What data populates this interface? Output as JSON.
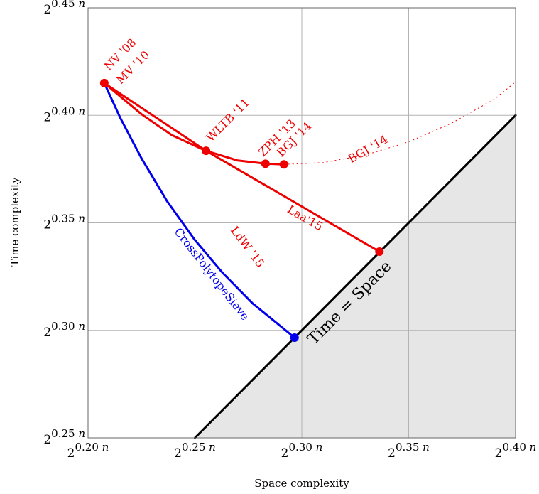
{
  "chart_data": {
    "type": "line",
    "xlabel": "Space complexity",
    "ylabel": "Time  complexity",
    "xlim": [
      0.2,
      0.4
    ],
    "ylim": [
      0.25,
      0.45
    ],
    "grid": true,
    "x_ticks": [
      {
        "value": 0.2,
        "base": "2",
        "exp": "0.20",
        "var": "n"
      },
      {
        "value": 0.25,
        "base": "2",
        "exp": "0.25",
        "var": "n"
      },
      {
        "value": 0.3,
        "base": "2",
        "exp": "0.30",
        "var": "n"
      },
      {
        "value": 0.35,
        "base": "2",
        "exp": "0.35",
        "var": "n"
      },
      {
        "value": 0.4,
        "base": "2",
        "exp": "0.40",
        "var": "n"
      }
    ],
    "y_ticks": [
      {
        "value": 0.25,
        "base": "2",
        "exp": "0.25",
        "var": "n"
      },
      {
        "value": 0.3,
        "base": "2",
        "exp": "0.30",
        "var": "n"
      },
      {
        "value": 0.35,
        "base": "2",
        "exp": "0.35",
        "var": "n"
      },
      {
        "value": 0.4,
        "base": "2",
        "exp": "0.40",
        "var": "n"
      },
      {
        "value": 0.45,
        "base": "2",
        "exp": "0.45",
        "var": "n"
      }
    ],
    "colors": {
      "red": "#ee0000",
      "blue": "#0000ee",
      "black": "#000000",
      "shade": "#e6e6e6",
      "grid": "#b3b3b3"
    },
    "region": {
      "label": "Time = Space",
      "from": [
        0.25,
        0.25
      ],
      "to": [
        0.4,
        0.4
      ]
    },
    "series": [
      {
        "color": "red",
        "style": "solid",
        "points": [
          [
            0.2076,
            0.415
          ],
          [
            0.225,
            0.4005
          ],
          [
            0.2392,
            0.3908
          ],
          [
            0.2552,
            0.3835
          ],
          [
            0.27,
            0.379
          ],
          [
            0.283,
            0.3775
          ],
          [
            0.2916,
            0.3772
          ]
        ]
      },
      {
        "color": "red",
        "style": "solid",
        "points": [
          [
            0.2076,
            0.415
          ],
          [
            0.2552,
            0.3835
          ]
        ]
      },
      {
        "color": "red",
        "style": "solid",
        "points": [
          [
            0.2552,
            0.3835
          ],
          [
            0.3363,
            0.3366
          ]
        ]
      },
      {
        "color": "red",
        "style": "dotted",
        "points": [
          [
            0.2916,
            0.3772
          ],
          [
            0.31,
            0.378
          ],
          [
            0.33,
            0.3816
          ],
          [
            0.35,
            0.3877
          ],
          [
            0.37,
            0.3963
          ],
          [
            0.39,
            0.4075
          ],
          [
            0.3994,
            0.4151
          ]
        ]
      },
      {
        "color": "blue",
        "style": "solid",
        "points": [
          [
            0.2076,
            0.415
          ],
          [
            0.215,
            0.399
          ],
          [
            0.225,
            0.38
          ],
          [
            0.237,
            0.36
          ],
          [
            0.25,
            0.342
          ],
          [
            0.263,
            0.3267
          ],
          [
            0.277,
            0.3125
          ],
          [
            0.2966,
            0.2966
          ]
        ]
      },
      {
        "color": "black",
        "style": "solid",
        "points": [
          [
            0.25,
            0.25
          ],
          [
            0.4,
            0.4
          ]
        ]
      }
    ],
    "markers": [
      {
        "x": 0.2076,
        "y": 0.415,
        "color": "red"
      },
      {
        "x": 0.2552,
        "y": 0.3835,
        "color": "red"
      },
      {
        "x": 0.283,
        "y": 0.3775,
        "color": "red"
      },
      {
        "x": 0.2916,
        "y": 0.3772,
        "color": "red"
      },
      {
        "x": 0.3363,
        "y": 0.3366,
        "color": "red"
      },
      {
        "x": 0.2966,
        "y": 0.2966,
        "color": "blue"
      }
    ],
    "annotations": [
      {
        "text": "NV '08",
        "x": 0.2152,
        "y": 0.4281,
        "angle": -45,
        "color": "red",
        "size": 16
      },
      {
        "text": "MV '10",
        "x": 0.2212,
        "y": 0.4221,
        "angle": -45,
        "color": "red",
        "size": 16
      },
      {
        "text": "WLTB '11",
        "x": 0.2656,
        "y": 0.3976,
        "angle": -45,
        "color": "red",
        "size": 16
      },
      {
        "text": "ZPH '13",
        "x": 0.2886,
        "y": 0.3893,
        "angle": -45,
        "color": "red",
        "size": 16
      },
      {
        "text": "BGJ '14",
        "x": 0.2966,
        "y": 0.3886,
        "angle": -45,
        "color": "red",
        "size": 16
      },
      {
        "text": "BGJ '14",
        "x": 0.3311,
        "y": 0.384,
        "angle": -30,
        "color": "red",
        "size": 16
      },
      {
        "text": "Laa'15",
        "x": 0.3014,
        "y": 0.352,
        "angle": 30,
        "color": "red",
        "size": 16
      },
      {
        "text": "LdW '15",
        "x": 0.2744,
        "y": 0.3386,
        "angle": 53,
        "color": "red",
        "size": 16
      },
      {
        "text": "CrossPolytopeSieve",
        "x": 0.2576,
        "y": 0.326,
        "angle": 52,
        "color": "blue",
        "size": 16
      },
      {
        "text": "Time = Space",
        "x": 0.3226,
        "y": 0.3126,
        "angle": -45,
        "color": "black",
        "size": 22
      }
    ]
  }
}
